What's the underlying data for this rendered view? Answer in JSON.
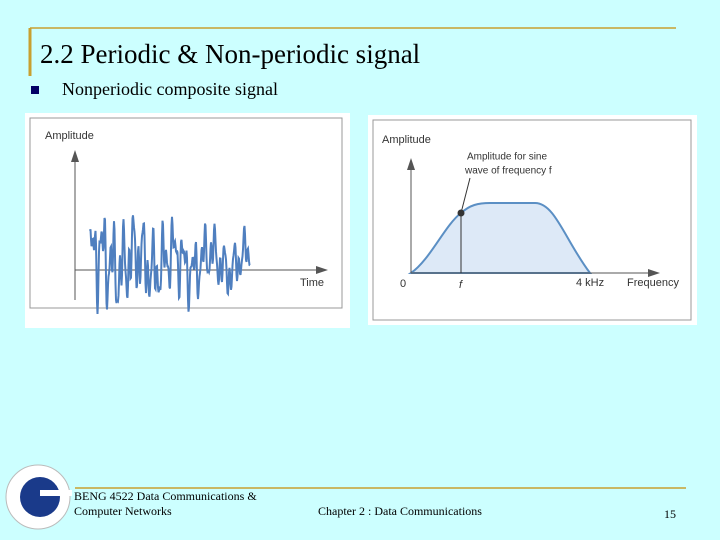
{
  "header": {
    "title": "2.2 Periodic & Non-periodic signal"
  },
  "bullet": "Nonperiodic composite signal",
  "figures": [
    {
      "y_label": "Amplitude",
      "x_label": "Time"
    },
    {
      "y_label": "Amplitude",
      "annotation": [
        "Amplitude for sine",
        "wave of frequency f"
      ],
      "origin": "0",
      "f_label": "f",
      "max_label": "4 kHz",
      "x_label": "Frequency"
    }
  ],
  "footer": {
    "course": [
      "BENG 4522 Data Communications &",
      "Computer Networks"
    ],
    "chapter": "Chapter 2 : Data Communications",
    "page": "15"
  }
}
